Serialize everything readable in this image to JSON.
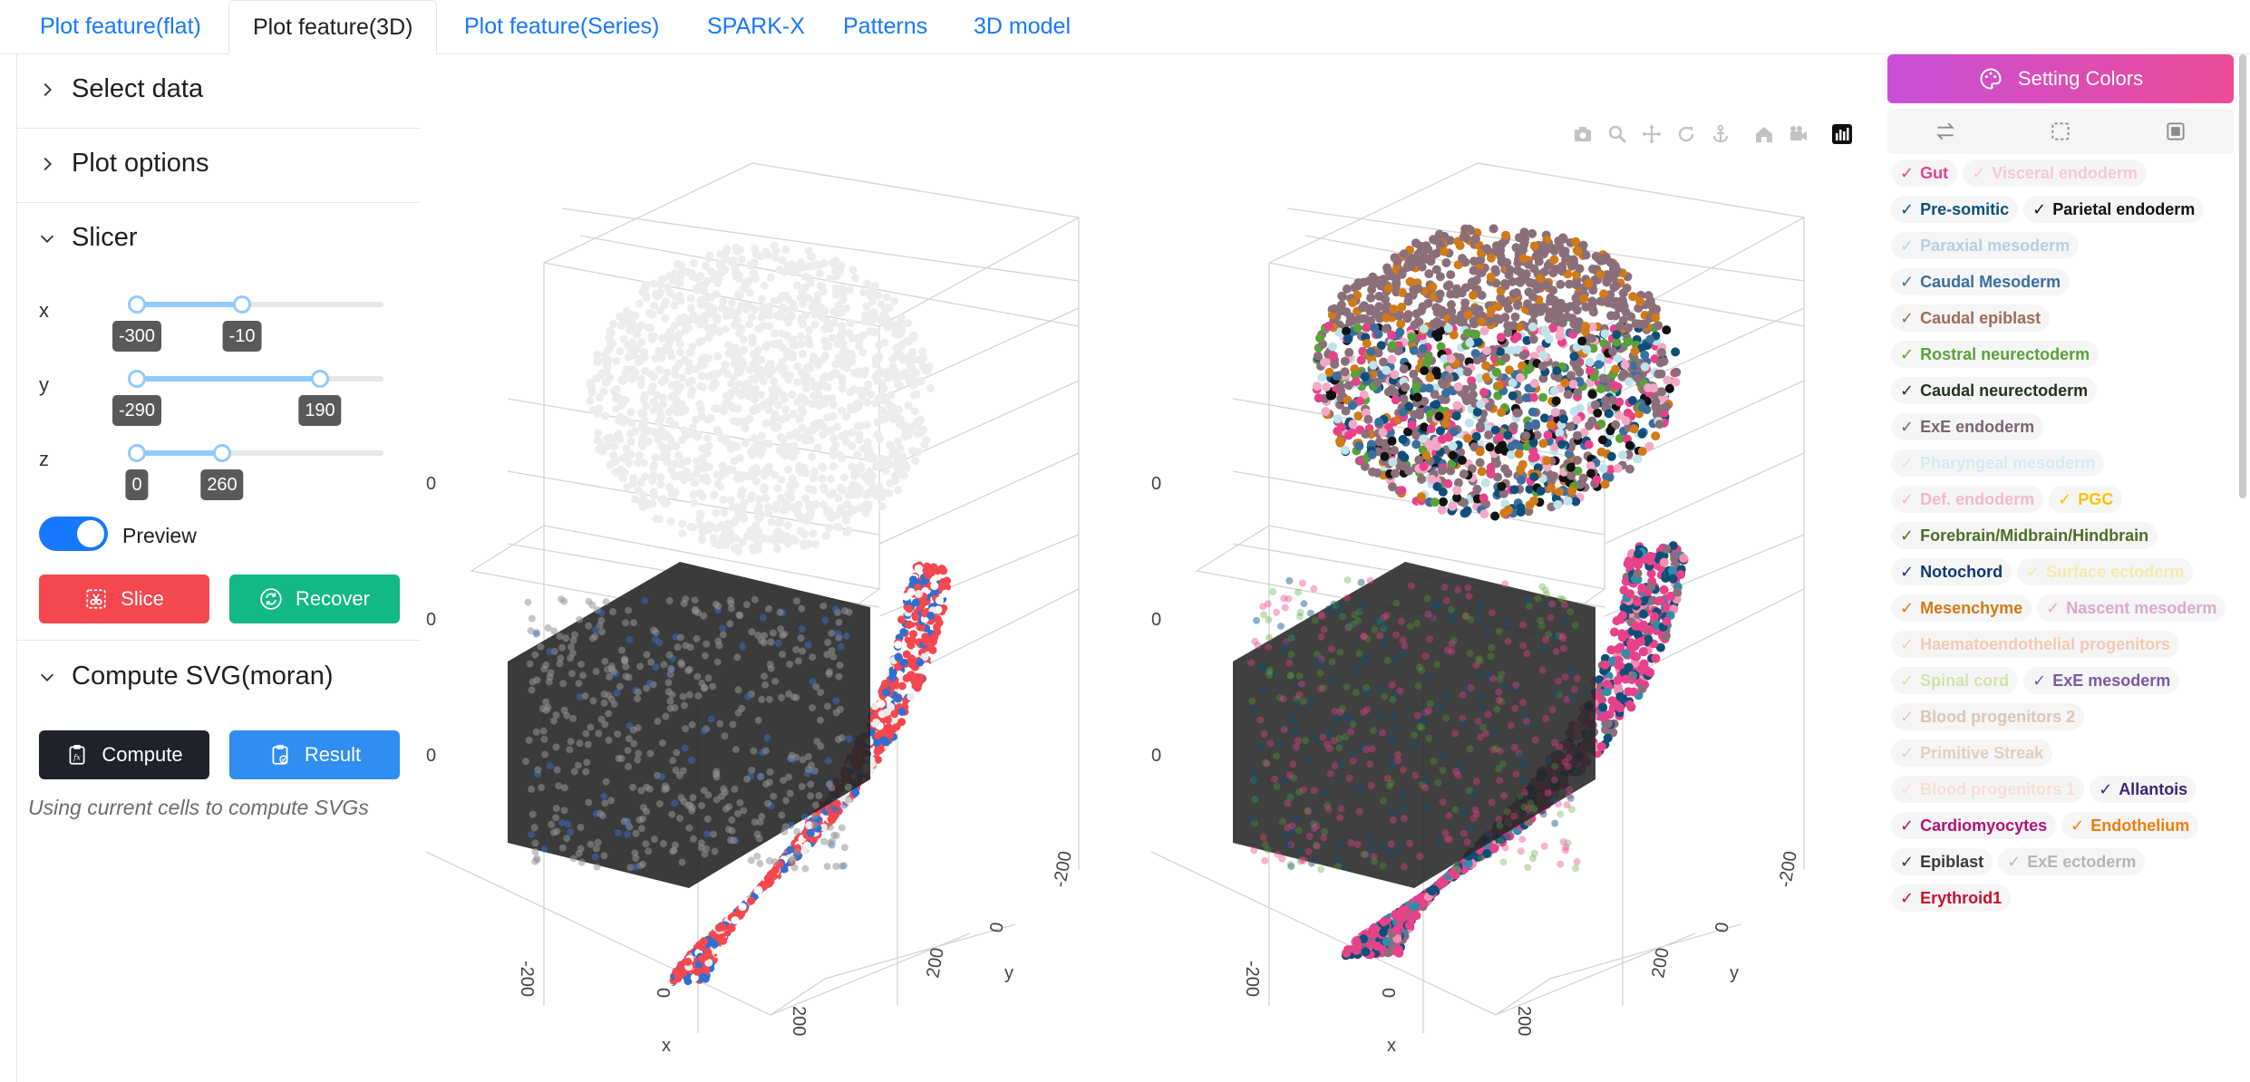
{
  "tabs": [
    {
      "label": "Plot feature(flat)",
      "active": false
    },
    {
      "label": "Plot feature(3D)",
      "active": true
    },
    {
      "label": "Plot feature(Series)",
      "active": false
    },
    {
      "label": "SPARK-X",
      "active": false
    },
    {
      "label": "Patterns",
      "active": false
    },
    {
      "label": "3D model",
      "active": false
    }
  ],
  "left": {
    "sections": {
      "select_data": "Select data",
      "plot_options": "Plot options",
      "slicer": "Slicer",
      "compute": "Compute SVG(moran)"
    },
    "slicer": {
      "x": {
        "label": "x",
        "min": -300,
        "max": -10
      },
      "y": {
        "label": "y",
        "min": -290,
        "max": 190
      },
      "z": {
        "label": "z",
        "min": 0,
        "max": 260
      },
      "range_min": -300,
      "range_max": 300
    },
    "preview": {
      "label": "Preview",
      "on": true
    },
    "buttons": {
      "slice": "Slice",
      "recover": "Recover",
      "compute": "Compute",
      "result": "Result"
    },
    "hint": "Using current cells to compute SVGs"
  },
  "plots": {
    "left_edge_ticks": [
      "0",
      "0",
      "0"
    ],
    "x_title": "x",
    "y_title": "y",
    "x_ticks": [
      "-200",
      "0",
      "200"
    ],
    "y_ticks": [
      "200",
      "0",
      "-200"
    ]
  },
  "modebar_icons": [
    "camera-icon",
    "zoom-icon",
    "pan-icon",
    "orbit-icon",
    "turntable-icon",
    "home-icon",
    "camera-view-icon",
    "plotly-logo-icon"
  ],
  "right": {
    "setting_colors": "Setting Colors",
    "segments": [
      "swap-icon",
      "select-dashed-icon",
      "select-all-icon"
    ],
    "legend": [
      {
        "name": "Gut",
        "color": "#e8418a",
        "on": true
      },
      {
        "name": "Visceral endoderm",
        "color": "#f3a9c6",
        "on": false
      },
      {
        "name": "Pre-somitic",
        "color": "#0d4f78",
        "on": true
      },
      {
        "name": "Parietal endoderm",
        "color": "#111111",
        "on": true
      },
      {
        "name": "Paraxial mesoderm",
        "color": "#8fb2d4",
        "on": false
      },
      {
        "name": "Caudal Mesoderm",
        "color": "#3a6f9e",
        "on": true
      },
      {
        "name": "Caudal epiblast",
        "color": "#9e6a5c",
        "on": true
      },
      {
        "name": "Rostral neurectoderm",
        "color": "#58a337",
        "on": true
      },
      {
        "name": "Caudal neurectoderm",
        "color": "#24331f",
        "on": true
      },
      {
        "name": "ExE endoderm",
        "color": "#7a6470",
        "on": true
      },
      {
        "name": "Pharyngeal mesoderm",
        "color": "#bfe3ea",
        "on": false
      },
      {
        "name": "Def. endoderm",
        "color": "#f78bb4",
        "on": false
      },
      {
        "name": "PGC",
        "color": "#f5c400",
        "on": true
      },
      {
        "name": "Forebrain/Midbrain/Hindbrain",
        "color": "#4d6d27",
        "on": true
      },
      {
        "name": "Notochord",
        "color": "#0e3a73",
        "on": true
      },
      {
        "name": "Surface ectoderm",
        "color": "#f1e27a",
        "on": false
      },
      {
        "name": "Mesenchyme",
        "color": "#d17a16",
        "on": true
      },
      {
        "name": "Nascent mesoderm",
        "color": "#c07aa8",
        "on": false
      },
      {
        "name": "Haematoendothelial progenitors",
        "color": "#f4a98a",
        "on": false
      },
      {
        "name": "Spinal cord",
        "color": "#b5d57a",
        "on": false
      },
      {
        "name": "ExE mesoderm",
        "color": "#7b58a8",
        "on": true
      },
      {
        "name": "Blood progenitors 2",
        "color": "#caa493",
        "on": false
      },
      {
        "name": "Primitive Streak",
        "color": "#d7b29d",
        "on": false
      },
      {
        "name": "Blood progenitors 1",
        "color": "#f6cfc3",
        "on": false
      },
      {
        "name": "Allantois",
        "color": "#3b2475",
        "on": true
      },
      {
        "name": "Cardiomyocytes",
        "color": "#b2127a",
        "on": true
      },
      {
        "name": "Endothelium",
        "color": "#f07d0c",
        "on": true
      },
      {
        "name": "Epiblast",
        "color": "#3a3a3a",
        "on": true
      },
      {
        "name": "ExE ectoderm",
        "color": "#8c8c8c",
        "on": false
      },
      {
        "name": "Erythroid1",
        "color": "#c8102e",
        "on": true
      }
    ]
  },
  "colors": {
    "accent": "#1677ff",
    "slice": "#f5474e",
    "recover": "#12b886",
    "compute": "#1f2329",
    "result": "#2f8ef0",
    "setting_start": "#c94fd8",
    "setting_end": "#ec4b96"
  }
}
